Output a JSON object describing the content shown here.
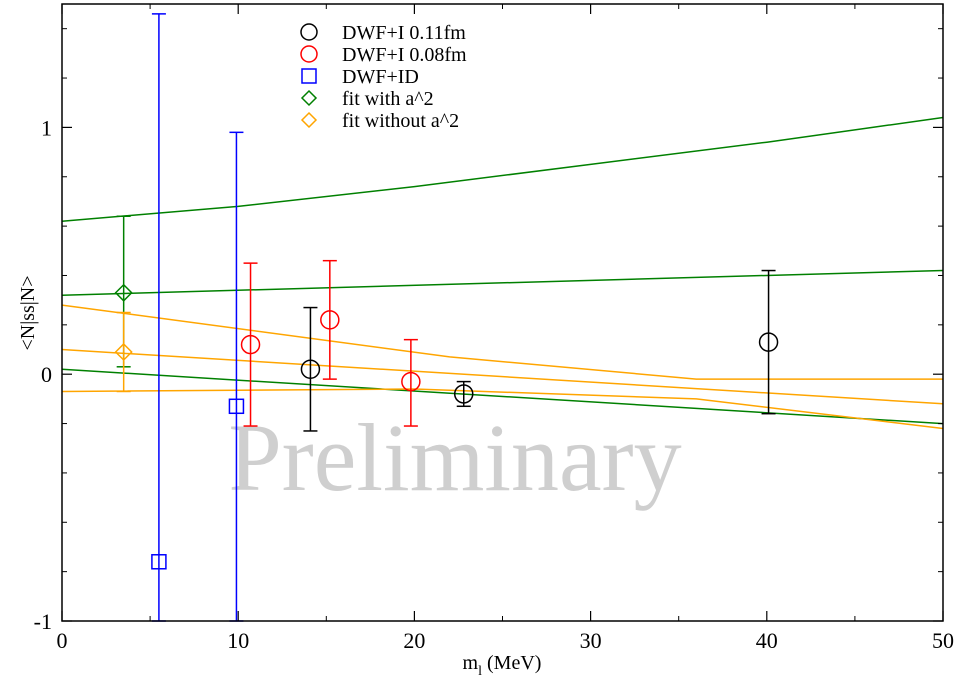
{
  "chart_data": {
    "type": "scatter",
    "xlabel_main": "m",
    "xlabel_sub": "l",
    "xlabel_unit": " (MeV)",
    "ylabel": "<N|ss|N>",
    "xlim": [
      0,
      50
    ],
    "ylim": [
      -1,
      1.5
    ],
    "xticks": [
      0,
      10,
      20,
      30,
      40,
      50
    ],
    "yticks": [
      -1,
      0,
      1
    ],
    "grid": false,
    "legend_position": "top-center",
    "watermark": "Preliminary",
    "series": [
      {
        "name": "DWF+I 0.11fm",
        "color": "#000000",
        "marker": "circle",
        "points": [
          {
            "x": 14.1,
            "y": 0.02,
            "lo": -0.23,
            "hi": 0.27
          },
          {
            "x": 22.8,
            "y": -0.08,
            "lo": -0.13,
            "hi": -0.03
          },
          {
            "x": 40.1,
            "y": 0.13,
            "lo": -0.16,
            "hi": 0.42
          }
        ]
      },
      {
        "name": "DWF+I 0.08fm",
        "color": "#ff0000",
        "marker": "circle",
        "points": [
          {
            "x": 10.7,
            "y": 0.12,
            "lo": -0.21,
            "hi": 0.45
          },
          {
            "x": 15.2,
            "y": 0.22,
            "lo": -0.02,
            "hi": 0.46
          },
          {
            "x": 19.8,
            "y": -0.03,
            "lo": -0.21,
            "hi": 0.14
          }
        ]
      },
      {
        "name": "DWF+ID",
        "color": "#0000ff",
        "marker": "square",
        "points": [
          {
            "x": 5.5,
            "y": -0.76,
            "lo": -1.0,
            "hi": 1.46
          },
          {
            "x": 9.9,
            "y": -0.13,
            "lo": -1.0,
            "hi": 0.98
          }
        ]
      },
      {
        "name": "fit with a^2",
        "color": "#008000",
        "marker": "diamond",
        "points": [
          {
            "x": 3.5,
            "y": 0.33,
            "lo": 0.03,
            "hi": 0.64
          }
        ]
      },
      {
        "name": "fit without a^2",
        "color": "#ffa500",
        "marker": "diamond",
        "points": [
          {
            "x": 3.5,
            "y": 0.09,
            "lo": -0.07,
            "hi": 0.25
          }
        ]
      }
    ],
    "fit_curves": [
      {
        "color": "#008000",
        "x": [
          0,
          10,
          20,
          30,
          40,
          50
        ],
        "y": [
          0.62,
          0.68,
          0.76,
          0.85,
          0.94,
          1.04
        ]
      },
      {
        "color": "#008000",
        "x": [
          0,
          50
        ],
        "y": [
          0.32,
          0.42
        ]
      },
      {
        "color": "#008000",
        "x": [
          0,
          50
        ],
        "y": [
          0.02,
          -0.2
        ]
      },
      {
        "color": "#ffa500",
        "x": [
          0,
          22,
          36,
          50
        ],
        "y": [
          0.28,
          0.07,
          -0.02,
          -0.02
        ]
      },
      {
        "color": "#ffa500",
        "x": [
          0,
          50
        ],
        "y": [
          0.1,
          -0.12
        ]
      },
      {
        "color": "#ffa500",
        "x": [
          0,
          20,
          36,
          50
        ],
        "y": [
          -0.07,
          -0.06,
          -0.1,
          -0.22
        ]
      }
    ]
  }
}
